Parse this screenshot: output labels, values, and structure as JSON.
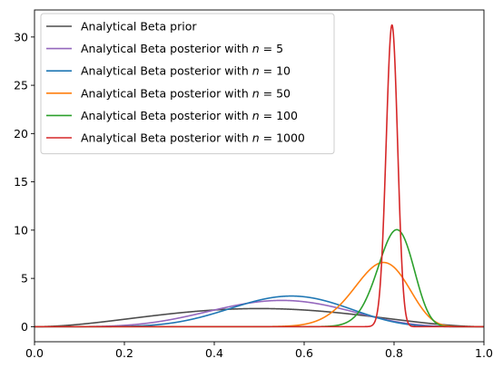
{
  "chart_data": {
    "type": "line",
    "title": "",
    "xlabel": "",
    "ylabel": "",
    "xlim": [
      0,
      1
    ],
    "ylim": [
      -1.56,
      32.8
    ],
    "grid": false,
    "legend_position": "upper-left",
    "x_ticks": [
      {
        "value": 0.0,
        "label": "0.0"
      },
      {
        "value": 0.2,
        "label": "0.2"
      },
      {
        "value": 0.4,
        "label": "0.4"
      },
      {
        "value": 0.6,
        "label": "0.6"
      },
      {
        "value": 0.8,
        "label": "0.8"
      },
      {
        "value": 1.0,
        "label": "1.0"
      }
    ],
    "y_ticks": [
      {
        "value": 0,
        "label": "0"
      },
      {
        "value": 5,
        "label": "5"
      },
      {
        "value": 10,
        "label": "10"
      },
      {
        "value": 15,
        "label": "15"
      },
      {
        "value": 20,
        "label": "20"
      },
      {
        "value": 25,
        "label": "25"
      },
      {
        "value": 30,
        "label": "30"
      }
    ],
    "series": [
      {
        "name": "Analytical Beta prior",
        "label_text": "Analytical Beta prior",
        "label_n": "",
        "color": "#4d4d4d",
        "alpha": 3,
        "beta": 3
      },
      {
        "name": "Analytical Beta posterior with n = 5",
        "label_text": "Analytical Beta posterior with ",
        "label_n": "5",
        "color": "#9467bd",
        "alpha": 6.5,
        "beta": 5.5
      },
      {
        "name": "Analytical Beta posterior with n = 10",
        "label_text": "Analytical Beta posterior with ",
        "label_n": "10",
        "color": "#1f77b4",
        "alpha": 9,
        "beta": 7
      },
      {
        "name": "Analytical Beta posterior with n = 50",
        "label_text": "Analytical Beta posterior with ",
        "label_n": "50",
        "color": "#ff7f0e",
        "alpha": 37.5,
        "beta": 11.5
      },
      {
        "name": "Analytical Beta posterior with n = 100",
        "label_text": "Analytical Beta posterior with ",
        "label_n": "100",
        "color": "#2ca02c",
        "alpha": 80,
        "beta": 20
      },
      {
        "name": "Analytical Beta posterior with n = 1000",
        "label_text": "Analytical Beta posterior with ",
        "label_n": "1000",
        "color": "#d62728",
        "alpha": 794,
        "beta": 205
      }
    ]
  }
}
